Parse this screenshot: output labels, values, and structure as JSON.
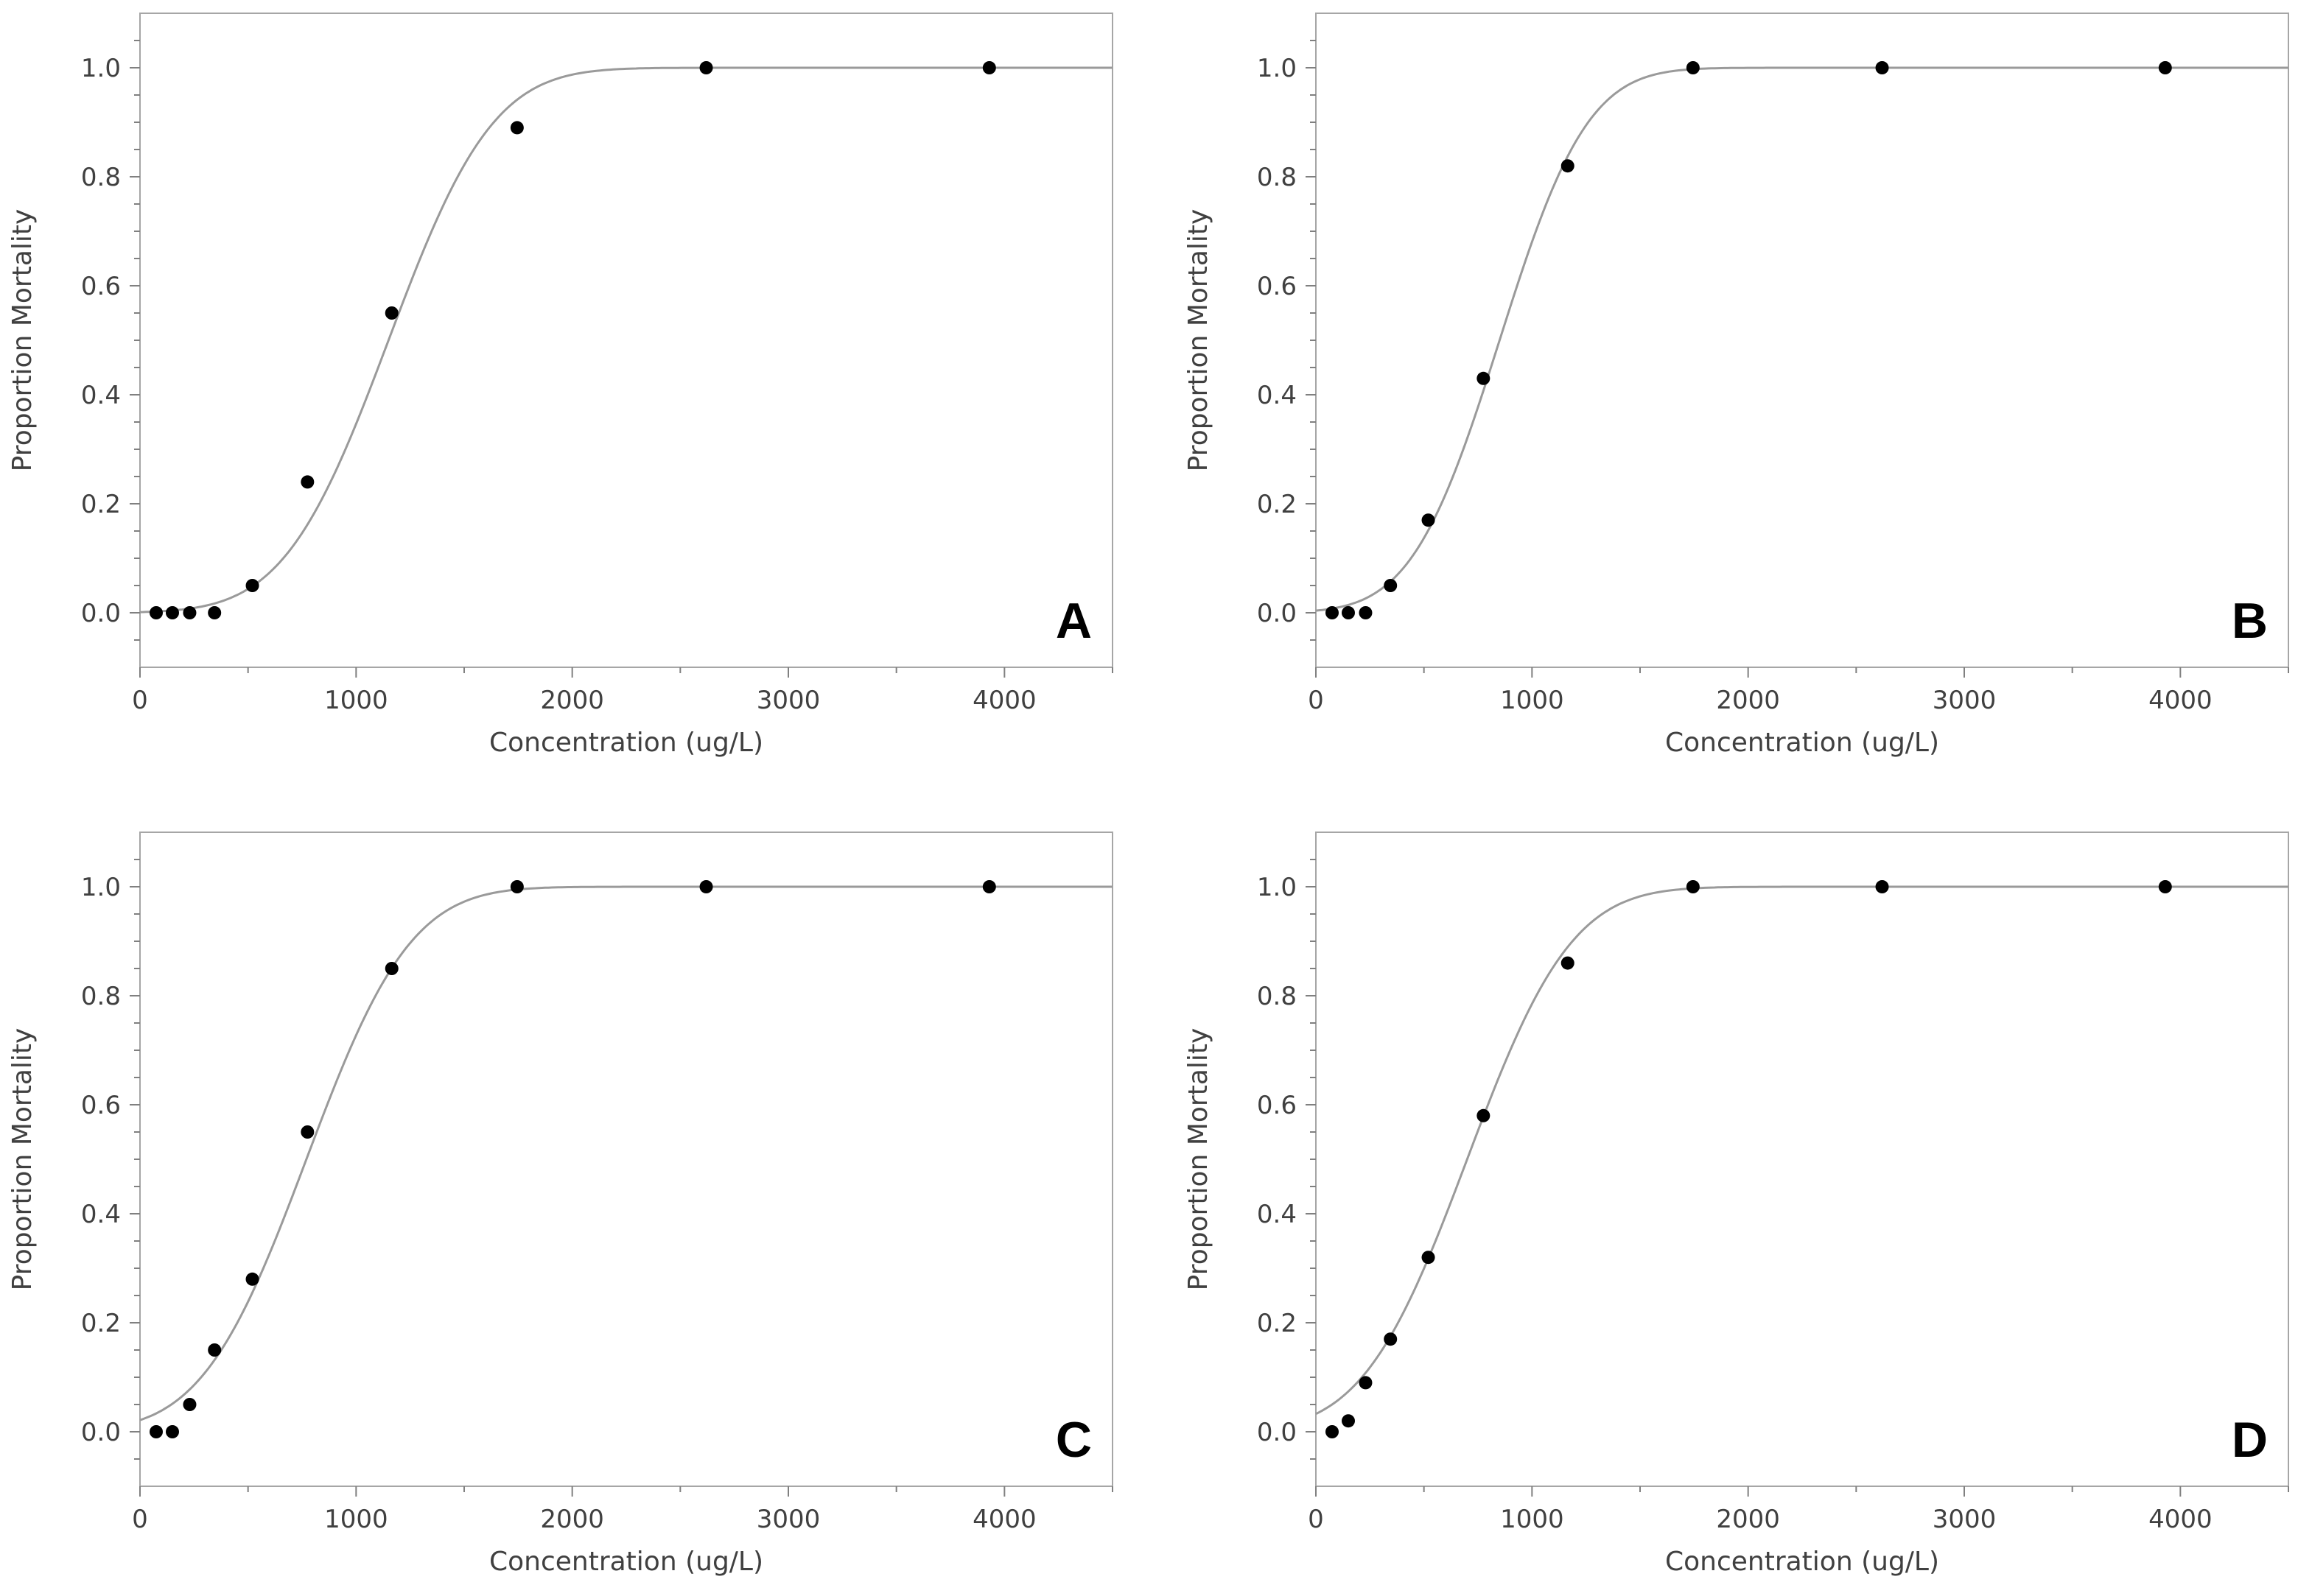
{
  "figure": {
    "description_label": "Proportion mortality vs concentration, four panels"
  },
  "chart_data": [
    {
      "type": "scatter",
      "panel": "A",
      "xlabel": "Concentration (ug/L)",
      "ylabel": "Proportion Mortality",
      "xlim": [
        0,
        4500
      ],
      "ylim": [
        -0.1,
        1.1
      ],
      "xticks": [
        0,
        1000,
        2000,
        3000,
        4000
      ],
      "xtick_labels": [
        "0",
        "1000",
        "2000",
        "3000",
        "4000"
      ],
      "yticks": [
        0,
        0.2,
        0.4,
        0.6,
        0.8,
        1.0
      ],
      "ytick_labels": [
        "0.0",
        "0.2",
        "0.4",
        "0.6",
        "0.8",
        "1.0"
      ],
      "grid": false,
      "points": {
        "x": [
          75,
          150,
          230,
          345,
          520,
          775,
          1165,
          1745,
          2620,
          3930
        ],
        "y": [
          0,
          0,
          0,
          0,
          0.05,
          0.24,
          0.55,
          0.89,
          1.0,
          1.0
        ]
      },
      "fit_curve": {
        "model": "probit",
        "mu": 1150,
        "sigma": 380
      }
    },
    {
      "type": "scatter",
      "panel": "B",
      "xlabel": "Concentration (ug/L)",
      "ylabel": "Proportion Mortality",
      "xlim": [
        0,
        4500
      ],
      "ylim": [
        -0.1,
        1.1
      ],
      "xticks": [
        0,
        1000,
        2000,
        3000,
        4000
      ],
      "xtick_labels": [
        "0",
        "1000",
        "2000",
        "3000",
        "4000"
      ],
      "yticks": [
        0,
        0.2,
        0.4,
        0.6,
        0.8,
        1.0
      ],
      "ytick_labels": [
        "0.0",
        "0.2",
        "0.4",
        "0.6",
        "0.8",
        "1.0"
      ],
      "grid": false,
      "points": {
        "x": [
          75,
          150,
          230,
          345,
          520,
          775,
          1165,
          1745,
          2620,
          3930
        ],
        "y": [
          0,
          0,
          0,
          0.05,
          0.17,
          0.43,
          0.82,
          1.0,
          1.0,
          1.0
        ]
      },
      "fit_curve": {
        "model": "probit",
        "mu": 850,
        "sigma": 320
      }
    },
    {
      "type": "scatter",
      "panel": "C",
      "xlabel": "Concentration (ug/L)",
      "ylabel": "Proportion Mortality",
      "xlim": [
        0,
        4500
      ],
      "ylim": [
        -0.1,
        1.1
      ],
      "xticks": [
        0,
        1000,
        2000,
        3000,
        4000
      ],
      "xtick_labels": [
        "0",
        "1000",
        "2000",
        "3000",
        "4000"
      ],
      "yticks": [
        0,
        0.2,
        0.4,
        0.6,
        0.8,
        1.0
      ],
      "ytick_labels": [
        "0.0",
        "0.2",
        "0.4",
        "0.6",
        "0.8",
        "1.0"
      ],
      "grid": false,
      "points": {
        "x": [
          75,
          150,
          230,
          345,
          520,
          775,
          1165,
          1745,
          2620,
          3930
        ],
        "y": [
          0,
          0,
          0.05,
          0.15,
          0.28,
          0.55,
          0.85,
          1.0,
          1.0,
          1.0
        ]
      },
      "fit_curve": {
        "model": "probit",
        "mu": 770,
        "sigma": 380
      }
    },
    {
      "type": "scatter",
      "panel": "D",
      "xlabel": "Concentration (ug/L)",
      "ylabel": "Proportion Mortality",
      "xlim": [
        0,
        4500
      ],
      "ylim": [
        -0.1,
        1.1
      ],
      "xticks": [
        0,
        1000,
        2000,
        3000,
        4000
      ],
      "xtick_labels": [
        "0",
        "1000",
        "2000",
        "3000",
        "4000"
      ],
      "yticks": [
        0,
        0.2,
        0.4,
        0.6,
        0.8,
        1.0
      ],
      "ytick_labels": [
        "0.0",
        "0.2",
        "0.4",
        "0.6",
        "0.8",
        "1.0"
      ],
      "grid": false,
      "points": {
        "x": [
          75,
          150,
          230,
          345,
          520,
          775,
          1165,
          1745,
          2620,
          3930
        ],
        "y": [
          0,
          0.02,
          0.09,
          0.17,
          0.32,
          0.58,
          0.86,
          1.0,
          1.0,
          1.0
        ]
      },
      "fit_curve": {
        "model": "probit",
        "mu": 700,
        "sigma": 380
      }
    }
  ],
  "colors": {
    "frame": "#a6a6a6",
    "curve": "#9a9a9a",
    "point": "#000000",
    "text": "#404040"
  }
}
